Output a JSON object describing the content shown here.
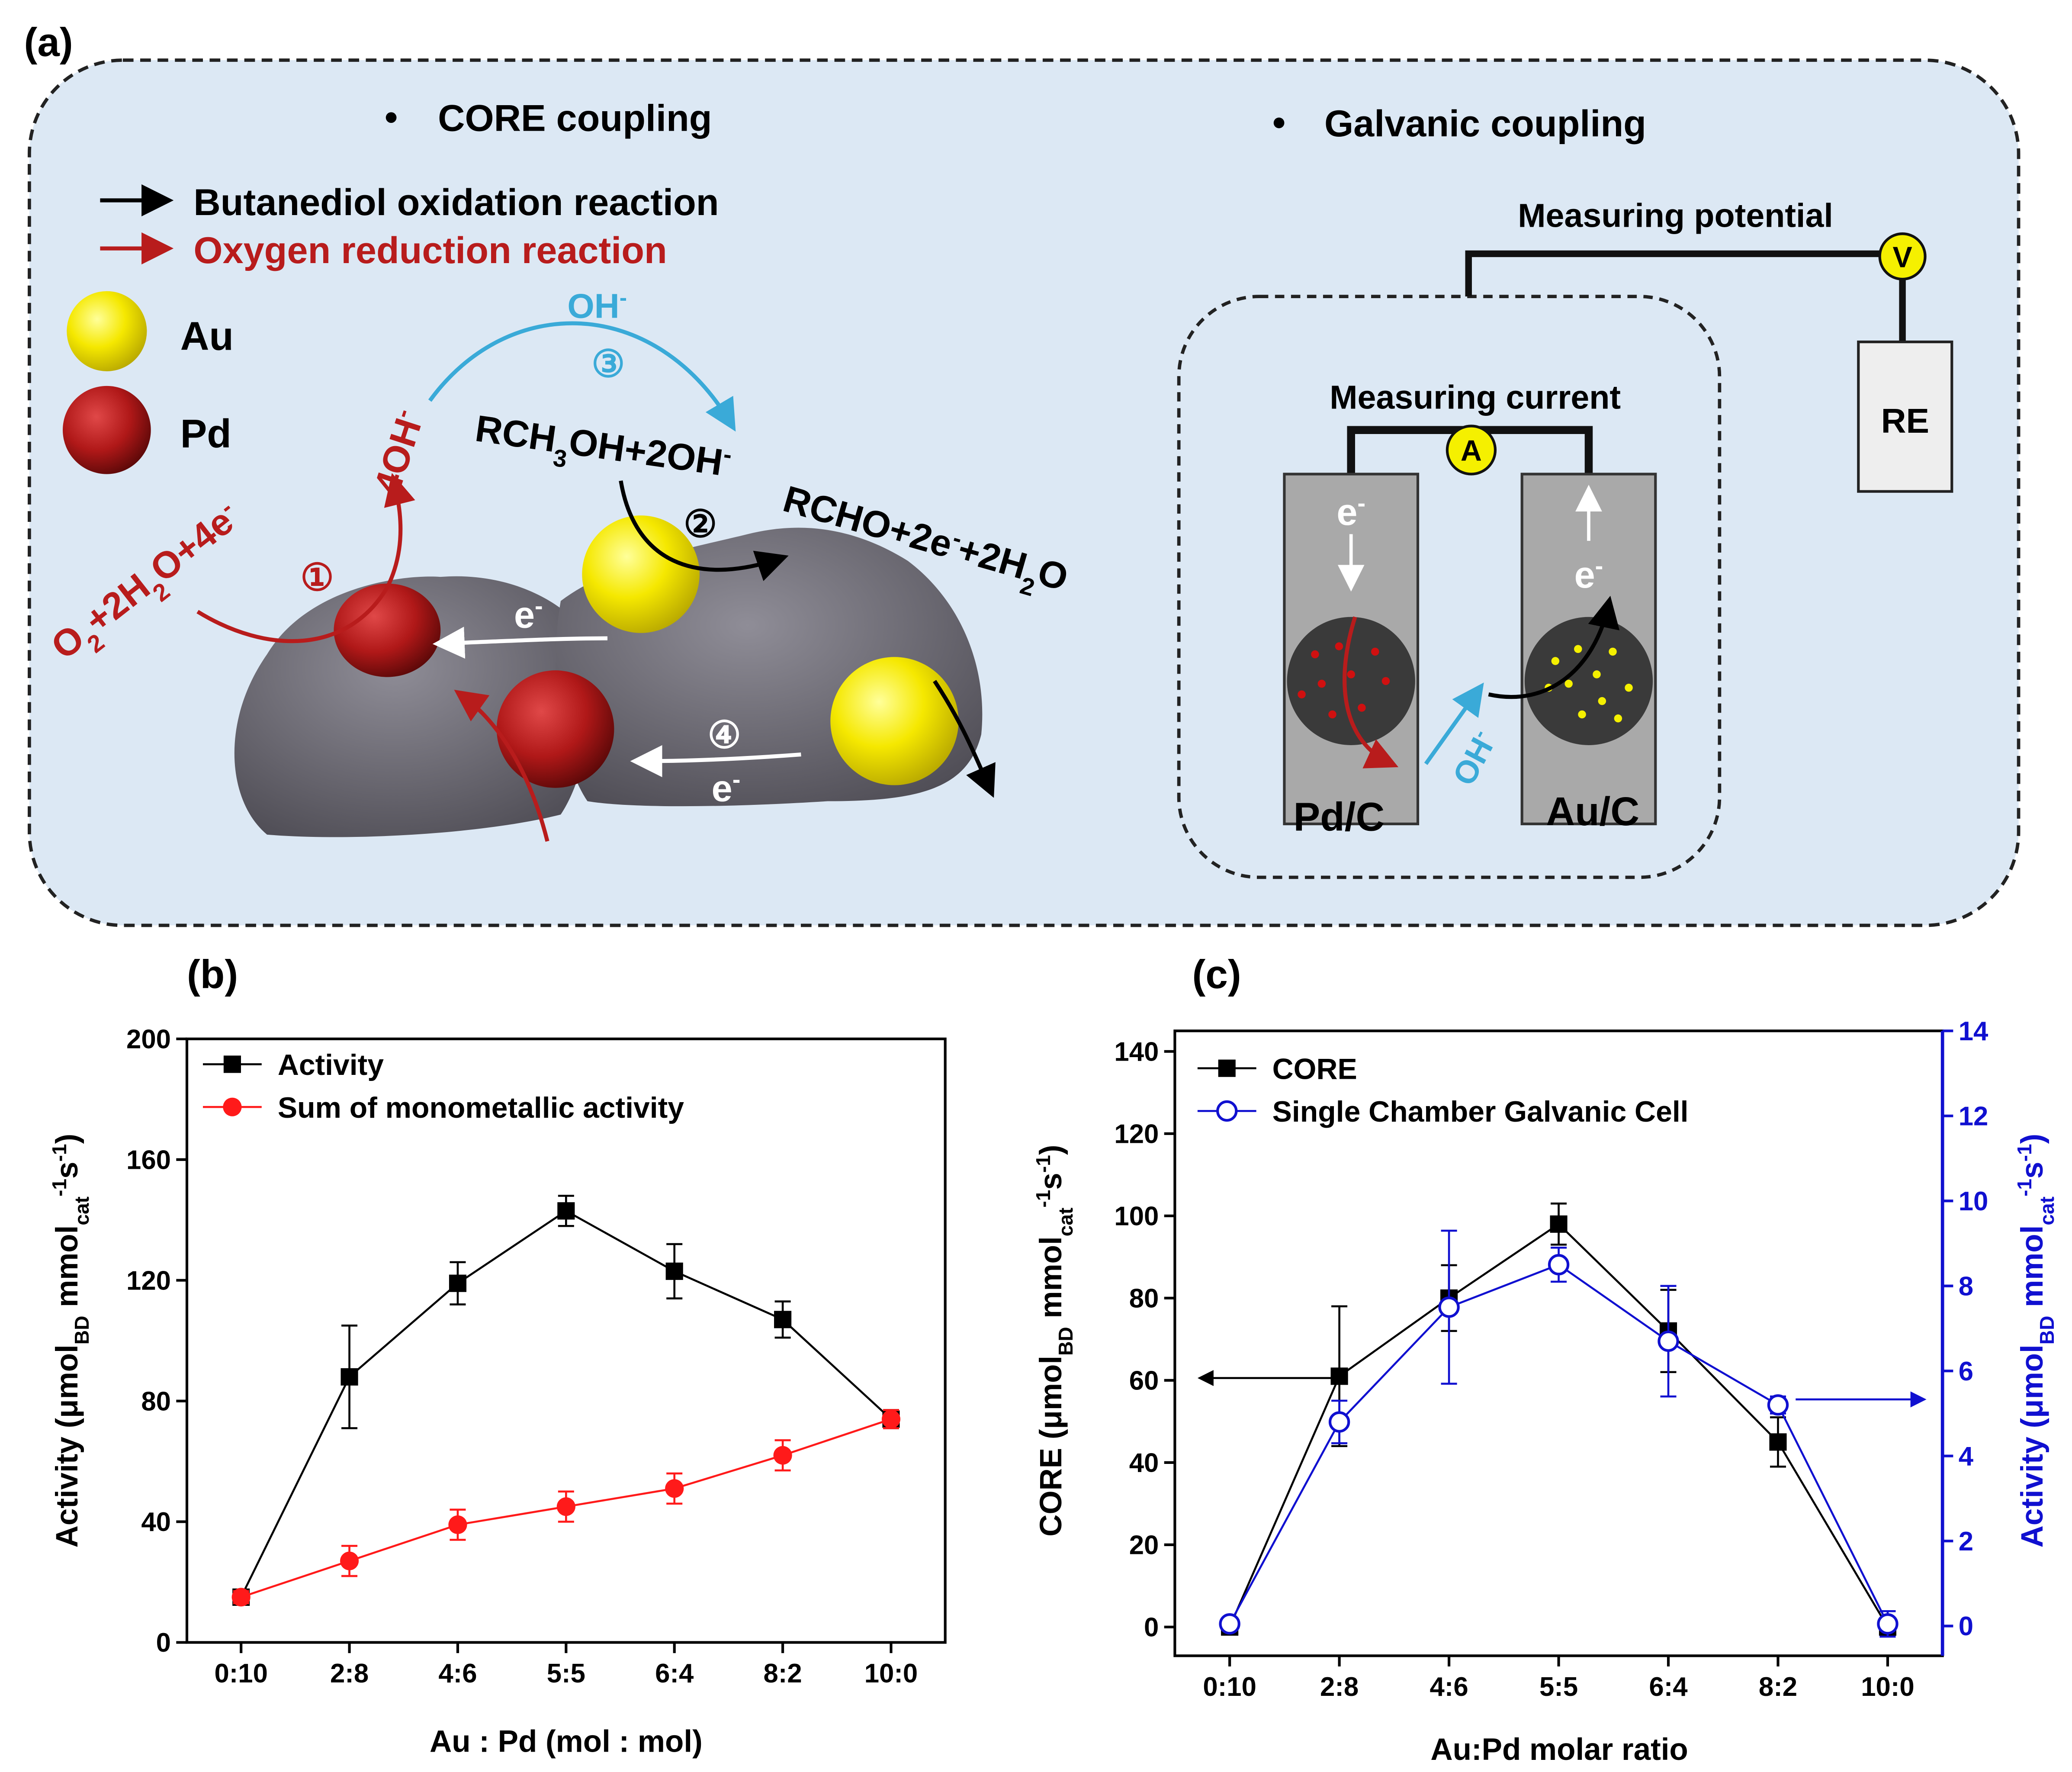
{
  "diagram": {
    "label": "(a)",
    "core_title": "CORE coupling",
    "galvanic_title": "Galvanic coupling",
    "legend": [
      "Butanediol oxidation reaction",
      "Oxygen reduction reaction"
    ],
    "metals": [
      "Au",
      "Pd"
    ],
    "core": {
      "oh_transfer": [
        "OH",
        "-"
      ],
      "step3": "③",
      "product_oh": [
        "4OH",
        "-"
      ],
      "reactant": [
        "RCH",
        "3",
        "OH+2OH",
        "-"
      ],
      "step2": "②",
      "product": [
        "RCHO+2e",
        "-",
        "+2H",
        "2",
        "O"
      ],
      "orr": [
        "O",
        "2",
        "+2H",
        "2",
        "O+4e",
        "-"
      ],
      "step1": "①",
      "electron_1": [
        "e",
        "-"
      ],
      "step4": "④",
      "electron_2": [
        "e",
        "-"
      ]
    },
    "galvanic": {
      "potential": "Measuring potential",
      "voltmeter": "V",
      "current": "Measuring current",
      "ammeter": "A",
      "reference": "RE",
      "electron_pd": [
        "e",
        "-"
      ],
      "electron_au": [
        "e",
        "-"
      ],
      "hydroxide": [
        "OH",
        "-"
      ],
      "pd_label": "Pd/C",
      "au_label": "Au/C"
    }
  },
  "chart_data": [
    {
      "type": "line",
      "title": "(b)",
      "categories": [
        "0:10",
        "2:8",
        "4:6",
        "5:5",
        "6:4",
        "8:2",
        "10:0"
      ],
      "series": [
        {
          "name": "Activity",
          "color": "#000000",
          "marker": "square",
          "values": [
            15,
            88,
            119,
            143,
            123,
            107,
            74
          ],
          "errors": [
            2,
            17,
            7,
            5,
            9,
            6,
            3
          ]
        },
        {
          "name": "Sum of monometallic activity",
          "color": "#ff1a1a",
          "marker": "circle",
          "values": [
            15,
            27,
            39,
            45,
            51,
            62,
            74
          ],
          "errors": [
            2,
            5,
            5,
            5,
            5,
            5,
            3
          ]
        }
      ],
      "ylim": [
        0,
        200
      ],
      "yticks": [
        0,
        40,
        80,
        120,
        160,
        200
      ],
      "xlabel": "Au : Pd (mol : mol)",
      "ylabel": [
        "Activity (μmol",
        "BD",
        " mmol",
        "cat",
        "-1",
        "s",
        "-1",
        ")"
      ]
    },
    {
      "type": "line",
      "title": "(c)",
      "categories": [
        "0:10",
        "2:8",
        "4:6",
        "5:5",
        "6:4",
        "8:2",
        "10:0"
      ],
      "series": [
        {
          "name": "CORE",
          "color": "#000000",
          "marker": "square",
          "values": [
            0,
            61,
            80,
            98,
            72,
            45,
            0
          ],
          "errors": [
            0,
            17,
            8,
            5,
            10,
            6,
            2
          ]
        },
        {
          "name": "Single Chamber Galvanic Cell",
          "color": "#1010d0",
          "marker": "open-circle",
          "axis": "y2",
          "values": [
            0.05,
            4.8,
            7.5,
            8.5,
            6.7,
            5.2,
            0.05
          ],
          "errors": [
            0,
            0.5,
            1.8,
            0.4,
            1.3,
            0.2,
            0.3
          ]
        }
      ],
      "ylim": [
        -7,
        145
      ],
      "yticks": [
        0,
        20,
        40,
        60,
        80,
        100,
        120,
        140
      ],
      "y2lim": [
        -0.7,
        14
      ],
      "y2ticks": [
        0,
        2,
        4,
        6,
        8,
        10,
        12,
        14
      ],
      "xlabel": "Au:Pd molar ratio",
      "ylabel": [
        "CORE (μmol",
        "BD",
        " mmol",
        "cat",
        "-1",
        "s",
        "-1",
        ")"
      ],
      "y2label": [
        "Activity (μmol",
        "BD",
        " mmol",
        "cat",
        "-1",
        "s",
        "-1",
        ")"
      ]
    }
  ]
}
